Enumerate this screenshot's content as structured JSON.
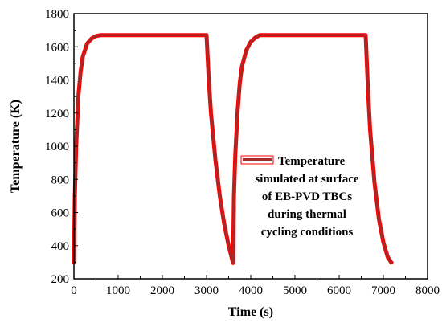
{
  "chart_data": {
    "type": "line",
    "xlabel": "Time (s)",
    "ylabel": "Temperature (K)",
    "xlim": [
      0,
      8000
    ],
    "ylim": [
      200,
      1800
    ],
    "x_ticks": [
      "0",
      "1000",
      "2000",
      "3000",
      "4000",
      "5000",
      "6000",
      "7000",
      "8000"
    ],
    "y_ticks": [
      "200",
      "400",
      "600",
      "800",
      "1000",
      "1200",
      "1400",
      "1600",
      "1800"
    ],
    "grid": false,
    "legend_position": "right",
    "legend_lines": [
      "Temperature",
      "simulated at surface",
      "of EB-PVD TBCs",
      "during thermal",
      "cycling conditions"
    ],
    "series": [
      {
        "color": "#a52a2a",
        "outline_color": "#ff0000",
        "x": [
          0,
          20,
          50,
          100,
          150,
          200,
          300,
          400,
          500,
          600,
          3000,
          3050,
          3100,
          3200,
          3300,
          3400,
          3500,
          3600,
          3620,
          3650,
          3700,
          3750,
          3800,
          3900,
          4000,
          4100,
          4200,
          6600,
          6650,
          6700,
          6800,
          6900,
          7000,
          7100,
          7200
        ],
        "y": [
          290,
          700,
          1000,
          1300,
          1450,
          1540,
          1620,
          1650,
          1665,
          1670,
          1670,
          1400,
          1200,
          920,
          700,
          530,
          400,
          295,
          700,
          950,
          1200,
          1380,
          1480,
          1580,
          1630,
          1655,
          1670,
          1670,
          1350,
          1100,
          780,
          560,
          420,
          330,
          290
        ]
      }
    ]
  }
}
